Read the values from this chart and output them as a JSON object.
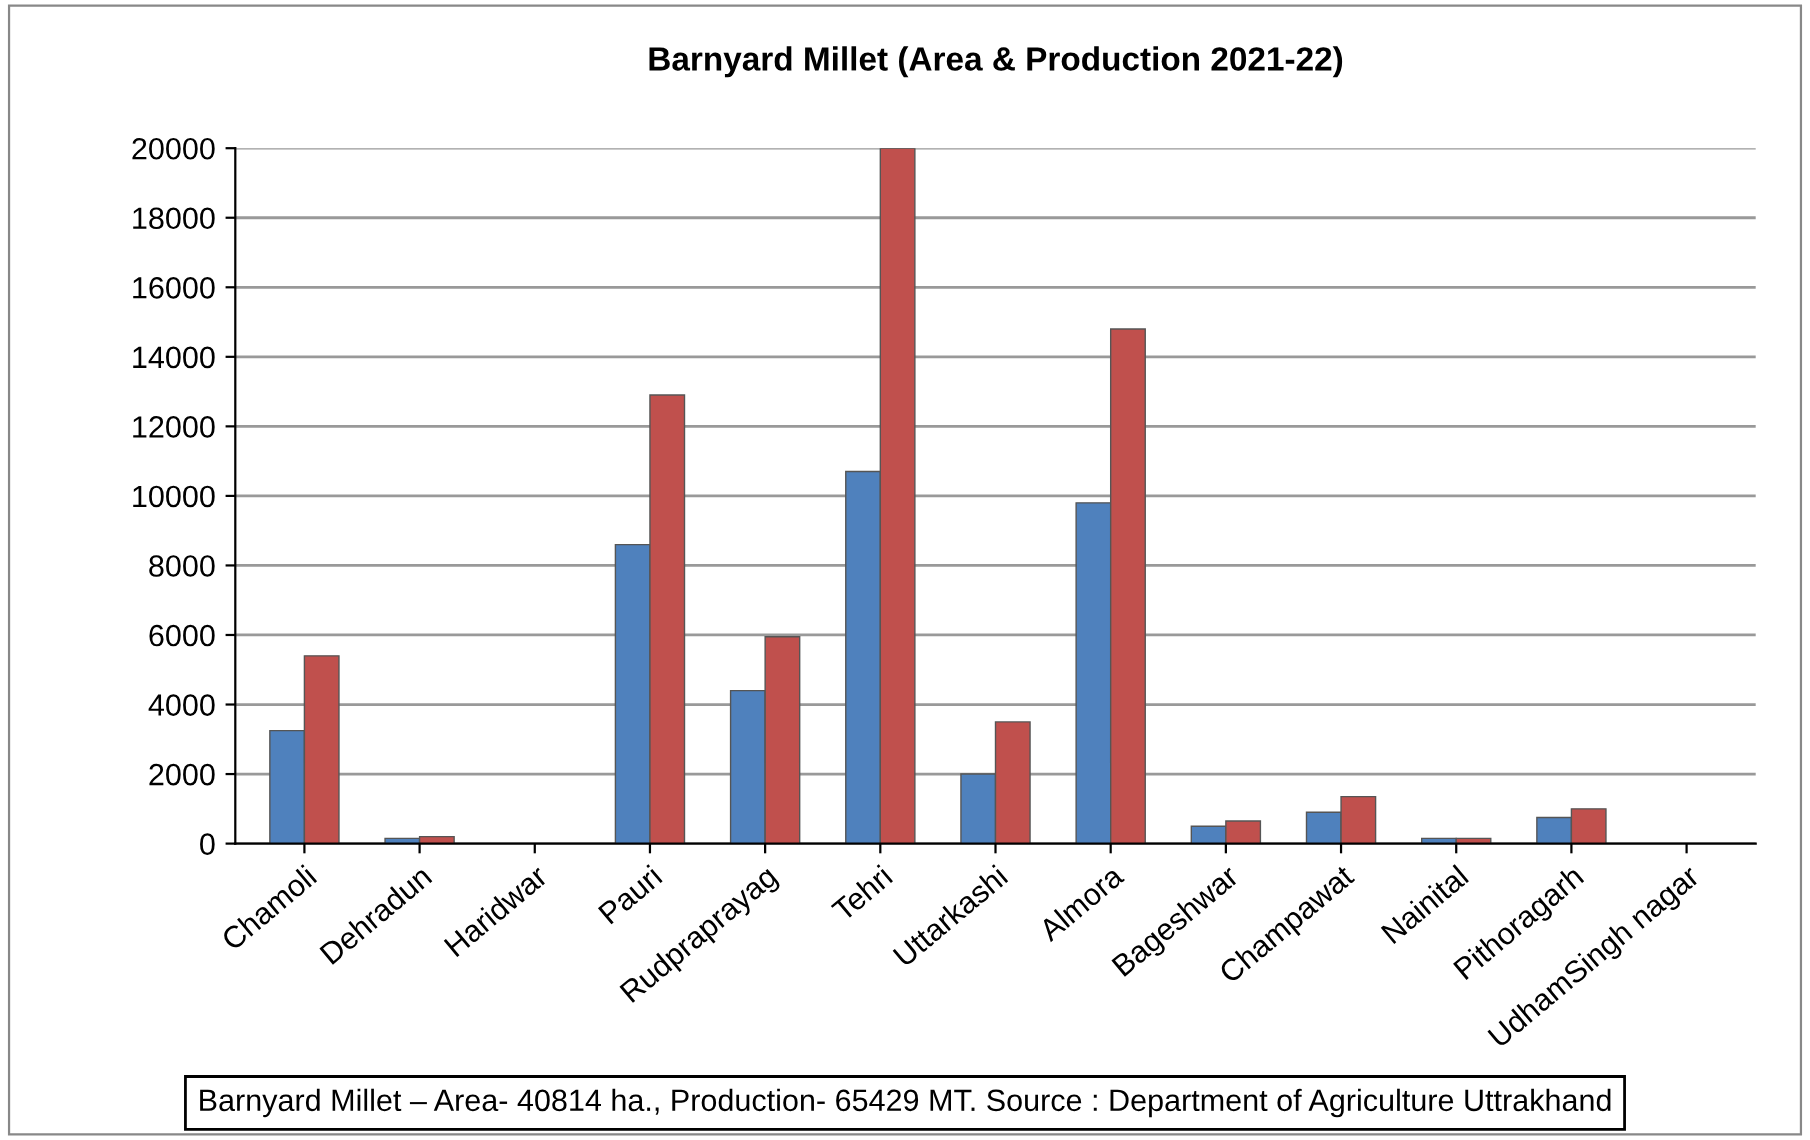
{
  "chart_data": {
    "type": "bar",
    "title": "Barnyard Millet (Area & Production 2021-22)",
    "categories": [
      "Chamoli",
      "Dehradun",
      "Haridwar",
      "Pauri",
      "Rudpraprayag",
      "Tehri",
      "Uttarkashi",
      "Almora",
      "Bageshwar",
      "Champawat",
      "Nainital",
      "Pithoragarh",
      "UdhamSingh nagar"
    ],
    "series": [
      {
        "color": "#4f81bd",
        "values": [
          3250,
          150,
          null,
          8600,
          4400,
          10700,
          2000,
          9800,
          500,
          900,
          150,
          750,
          null
        ]
      },
      {
        "color": "#c0504d",
        "values": [
          5400,
          200,
          null,
          12900,
          5950,
          20000,
          3500,
          14800,
          650,
          1350,
          150,
          1000,
          null
        ]
      }
    ],
    "ylim": [
      0,
      20000
    ],
    "yticks": [
      0,
      2000,
      4000,
      6000,
      8000,
      10000,
      12000,
      14000,
      16000,
      18000,
      20000
    ],
    "grid": "y",
    "annotations": [
      "Barnyard Millet – Area- 40814 ha., Production- 65429 MT. Source : Department of Agriculture Uttrakhand"
    ]
  }
}
